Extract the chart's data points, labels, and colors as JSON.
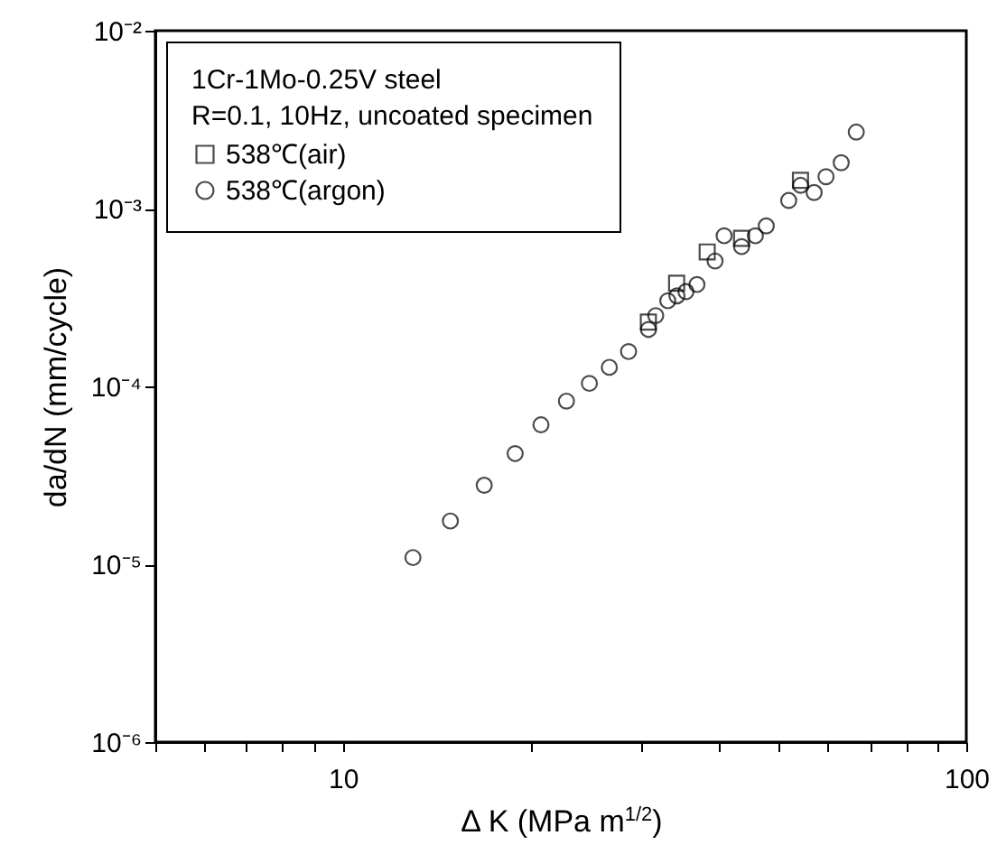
{
  "chart_data": {
    "type": "scatter",
    "xlabel": "Δ  K (MPa m$^{1/2}$)",
    "ylabel": "da/dN (mm/cycle)",
    "log": "xy",
    "legend": "top left",
    "legend_title": "1Cr-1Mo-0.25V steel\nR=0.1, 10Hz, uncoated specimen",
    "grid": false,
    "xlim": [
      5,
      100
    ],
    "ylim": [
      1e-06,
      0.01
    ],
    "xticks": [
      {
        "value": 5,
        "label": null
      },
      {
        "value": 6,
        "label": null
      },
      {
        "value": 7,
        "label": null
      },
      {
        "value": 8,
        "label": null
      },
      {
        "value": 9,
        "label": null
      },
      10,
      {
        "value": 20,
        "label": null
      },
      {
        "value": 30,
        "label": null
      },
      {
        "value": 40,
        "label": null
      },
      {
        "value": 50,
        "label": null
      },
      {
        "value": 60,
        "label": null
      },
      {
        "value": 70,
        "label": null
      },
      {
        "value": 80,
        "label": null
      },
      {
        "value": 90,
        "label": null
      },
      100
    ],
    "yticks": [
      {
        "value": 1e-06,
        "label": "10⁻⁶"
      },
      {
        "value": 1e-05,
        "label": "10⁻⁵"
      },
      {
        "value": 0.0001,
        "label": "10⁻⁴"
      },
      {
        "value": 0.001,
        "label": "10⁻³"
      },
      {
        "value": 0.01,
        "label": "10⁻²"
      }
    ],
    "series": [
      {
        "name": "538℃(air)",
        "color": "#000000",
        "marker": "square",
        "x": [
          30.9,
          34.3,
          38.4,
          43.6,
          54.2
        ],
        "values": [
          0.00023,
          0.00038,
          0.00057,
          0.00068,
          0.00144
        ]
      },
      {
        "name": "538℃(argon)",
        "color": "#000000",
        "marker": "circle",
        "x": [
          12.95,
          14.87,
          16.85,
          18.89,
          20.78,
          22.83,
          24.85,
          26.75,
          28.72,
          30.91,
          31.75,
          33.2,
          34.34,
          35.5,
          36.97,
          39.53,
          40.88,
          43.6,
          45.88,
          47.76,
          51.89,
          54.23,
          57.0,
          59.56,
          63.0,
          66.6
        ],
        "values": [
          1.09e-05,
          1.75e-05,
          2.78e-05,
          4.19e-05,
          6.08e-05,
          8.26e-05,
          0.000104,
          0.000128,
          0.000157,
          0.000209,
          0.00025,
          0.000303,
          0.000323,
          0.000341,
          0.000374,
          0.000507,
          0.000703,
          0.000611,
          0.000703,
          0.000798,
          0.00111,
          0.00135,
          0.00123,
          0.00151,
          0.00181,
          0.00269
        ]
      }
    ]
  }
}
